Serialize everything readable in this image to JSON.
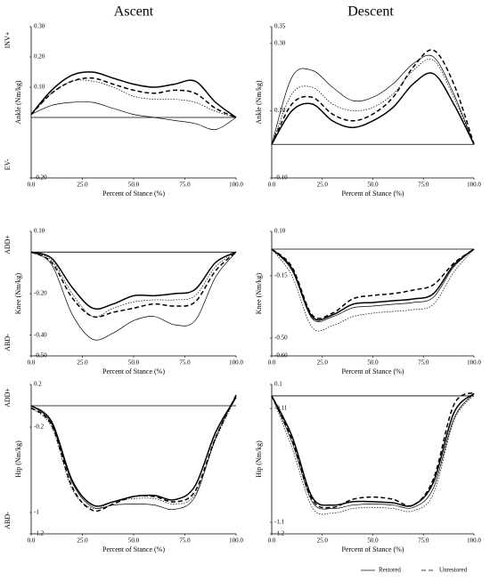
{
  "columns": [
    "Ascent",
    "Descent"
  ],
  "legend": [
    {
      "label": "Restored",
      "line_style": "solid"
    },
    {
      "label": "Unrestored",
      "line_style": "dashed"
    }
  ],
  "chart_data": [
    {
      "type": "line",
      "y_label": "Ankle (Nm/kg)",
      "x_label": "Percent of Stance (%)",
      "side_labels": [
        "INV+",
        "EV-"
      ],
      "x": [
        0,
        10,
        20,
        30,
        40,
        50,
        60,
        70,
        80,
        90,
        100
      ],
      "xlim": [
        0,
        100
      ],
      "xticks": [
        {
          "value": 0,
          "label": "0.0"
        },
        {
          "value": 25,
          "label": "25.0"
        },
        {
          "value": 50,
          "label": "50.0"
        },
        {
          "value": 75,
          "label": "75.0"
        },
        {
          "value": 100,
          "label": "100.0"
        }
      ],
      "ylim": [
        -0.2,
        0.3
      ],
      "yticks": [
        {
          "value": 0.3,
          "label": "0.30"
        },
        {
          "value": 0.2,
          "label": "0.20"
        },
        {
          "value": 0.1,
          "label": "0.10"
        },
        {
          "value": -0.2,
          "label": "-0.20"
        }
      ],
      "hline": 0,
      "series": [
        {
          "color": "#000000",
          "line_style": "solid",
          "weight": "bold",
          "values": [
            0.01,
            0.09,
            0.14,
            0.15,
            0.13,
            0.11,
            0.1,
            0.11,
            0.12,
            0.05,
            0.0
          ]
        },
        {
          "color": "#000000",
          "line_style": "dashed",
          "weight": "bold",
          "values": [
            0.01,
            0.08,
            0.12,
            0.13,
            0.11,
            0.09,
            0.08,
            0.09,
            0.08,
            0.03,
            0.0
          ]
        },
        {
          "color": "#000000",
          "line_style": "dotted",
          "weight": "thin",
          "values": [
            0.01,
            0.08,
            0.12,
            0.12,
            0.1,
            0.07,
            0.06,
            0.06,
            0.05,
            0.02,
            0.0
          ]
        },
        {
          "color": "#000000",
          "line_style": "solid",
          "weight": "thin",
          "values": [
            0.01,
            0.04,
            0.05,
            0.05,
            0.03,
            0.01,
            0.0,
            -0.01,
            -0.02,
            -0.04,
            0.0
          ]
        }
      ]
    },
    {
      "type": "line",
      "y_label": "Ankle (Nm/kg)",
      "x_label": "Percent of Stance (%)",
      "side_labels": [],
      "x": [
        0,
        10,
        20,
        30,
        40,
        50,
        60,
        70,
        80,
        90,
        100
      ],
      "xlim": [
        0,
        100
      ],
      "xticks": [
        {
          "value": 0,
          "label": "0.0"
        },
        {
          "value": 25,
          "label": "25.0"
        },
        {
          "value": 50,
          "label": "50.0"
        },
        {
          "value": 75,
          "label": "75.0"
        },
        {
          "value": 100,
          "label": "100.0"
        }
      ],
      "ylim": [
        -0.1,
        0.35
      ],
      "yticks": [
        {
          "value": 0.35,
          "label": "0.35"
        },
        {
          "value": 0.3,
          "label": "0.30"
        },
        {
          "value": 0.1,
          "label": "0.10"
        },
        {
          "value": -0.1,
          "label": "-0.10"
        }
      ],
      "hline": 0,
      "series": [
        {
          "color": "#000000",
          "line_style": "solid",
          "weight": "thin",
          "values": [
            0,
            0.2,
            0.22,
            0.17,
            0.13,
            0.14,
            0.18,
            0.24,
            0.26,
            0.15,
            0
          ]
        },
        {
          "color": "#000000",
          "line_style": "dotted",
          "weight": "thin",
          "values": [
            0,
            0.15,
            0.17,
            0.12,
            0.1,
            0.11,
            0.15,
            0.22,
            0.25,
            0.14,
            0
          ]
        },
        {
          "color": "#000000",
          "line_style": "dashed",
          "weight": "bold",
          "values": [
            0,
            0.12,
            0.14,
            0.09,
            0.07,
            0.09,
            0.14,
            0.23,
            0.28,
            0.18,
            0
          ]
        },
        {
          "color": "#000000",
          "line_style": "solid",
          "weight": "bold",
          "values": [
            0,
            0.1,
            0.12,
            0.07,
            0.05,
            0.07,
            0.11,
            0.18,
            0.21,
            0.12,
            0
          ]
        }
      ]
    },
    {
      "type": "line",
      "y_label": "Knee (Nm/kg)",
      "x_label": "Percent of Stance (%)",
      "side_labels": [
        "ADD+",
        "ABD-"
      ],
      "x": [
        0,
        10,
        20,
        30,
        40,
        50,
        60,
        70,
        80,
        90,
        100
      ],
      "xlim": [
        0,
        100
      ],
      "xticks": [
        {
          "value": 0,
          "label": "0.0"
        },
        {
          "value": 25,
          "label": "25.0"
        },
        {
          "value": 50,
          "label": "50.0"
        },
        {
          "value": 75,
          "label": "75.0"
        },
        {
          "value": 100,
          "label": "100.0"
        }
      ],
      "ylim": [
        -0.5,
        0.1
      ],
      "yticks": [
        {
          "value": 0.1,
          "label": "0.10"
        },
        {
          "value": -0.2,
          "label": "-0.20"
        },
        {
          "value": -0.4,
          "label": "-0.40"
        },
        {
          "value": -0.5,
          "label": "-0.50"
        }
      ],
      "hline": 0,
      "series": [
        {
          "color": "#000000",
          "line_style": "solid",
          "weight": "bold",
          "values": [
            0,
            -0.03,
            -0.17,
            -0.27,
            -0.25,
            -0.21,
            -0.21,
            -0.2,
            -0.18,
            -0.05,
            0
          ]
        },
        {
          "color": "#000000",
          "line_style": "dotted",
          "weight": "thin",
          "values": [
            0,
            -0.04,
            -0.2,
            -0.31,
            -0.27,
            -0.24,
            -0.23,
            -0.23,
            -0.21,
            -0.07,
            0
          ]
        },
        {
          "color": "#000000",
          "line_style": "dashed",
          "weight": "bold",
          "values": [
            0,
            -0.05,
            -0.22,
            -0.31,
            -0.29,
            -0.27,
            -0.25,
            -0.26,
            -0.24,
            -0.09,
            0
          ]
        },
        {
          "color": "#000000",
          "line_style": "solid",
          "weight": "thin",
          "values": [
            0,
            -0.06,
            -0.3,
            -0.42,
            -0.39,
            -0.33,
            -0.31,
            -0.35,
            -0.33,
            -0.12,
            0
          ]
        }
      ]
    },
    {
      "type": "line",
      "y_label": "Knee (Nm/kg)",
      "x_label": "Percent of Stance (%)",
      "side_labels": [],
      "x": [
        0,
        10,
        20,
        30,
        40,
        50,
        60,
        70,
        80,
        90,
        100
      ],
      "xlim": [
        0,
        100
      ],
      "xticks": [
        {
          "value": 0,
          "label": "0.0"
        },
        {
          "value": 25,
          "label": "25.0"
        },
        {
          "value": 50,
          "label": "50.0"
        },
        {
          "value": 75,
          "label": "75.0"
        },
        {
          "value": 100,
          "label": "100.0"
        }
      ],
      "ylim": [
        -0.6,
        0.1
      ],
      "yticks": [
        {
          "value": 0.1,
          "label": "0.10"
        },
        {
          "value": -0.15,
          "label": "-0.15"
        },
        {
          "value": -0.5,
          "label": "-0.50"
        },
        {
          "value": -0.6,
          "label": "-0.60"
        }
      ],
      "hline": 0,
      "series": [
        {
          "color": "#000000",
          "line_style": "dashed",
          "weight": "bold",
          "values": [
            0,
            -0.1,
            -0.37,
            -0.36,
            -0.28,
            -0.26,
            -0.25,
            -0.23,
            -0.2,
            -0.08,
            0
          ]
        },
        {
          "color": "#000000",
          "line_style": "solid",
          "weight": "bold",
          "values": [
            0,
            -0.11,
            -0.38,
            -0.37,
            -0.31,
            -0.3,
            -0.29,
            -0.28,
            -0.25,
            -0.09,
            0
          ]
        },
        {
          "color": "#000000",
          "line_style": "solid",
          "weight": "thin",
          "values": [
            0,
            -0.12,
            -0.39,
            -0.38,
            -0.33,
            -0.32,
            -0.31,
            -0.3,
            -0.27,
            -0.1,
            0
          ]
        },
        {
          "color": "#000000",
          "line_style": "dotted",
          "weight": "thin",
          "values": [
            0,
            -0.15,
            -0.44,
            -0.43,
            -0.38,
            -0.36,
            -0.35,
            -0.34,
            -0.31,
            -0.13,
            0
          ]
        }
      ]
    },
    {
      "type": "line",
      "y_label": "Hip (Nm/kg)",
      "x_label": "Percent of Stance (%)",
      "side_labels": [
        "ADD+",
        "ABD-"
      ],
      "x": [
        0,
        10,
        20,
        30,
        40,
        50,
        60,
        70,
        80,
        90,
        100
      ],
      "xlim": [
        0,
        100
      ],
      "xticks": [
        {
          "value": 0,
          "label": "0.0"
        },
        {
          "value": 25,
          "label": "25.0"
        },
        {
          "value": 50,
          "label": "50.0"
        },
        {
          "value": 75,
          "label": "75.0"
        },
        {
          "value": 100,
          "label": "100.0"
        }
      ],
      "ylim": [
        -1.2,
        0.2
      ],
      "yticks": [
        0.2,
        -0.2,
        -1.0,
        -1.2
      ],
      "hline": 0,
      "series": [
        {
          "color": "#000000",
          "line_style": "solid",
          "weight": "bold",
          "values": [
            0,
            -0.15,
            -0.7,
            -0.93,
            -0.9,
            -0.85,
            -0.84,
            -0.88,
            -0.75,
            -0.25,
            0.08
          ]
        },
        {
          "color": "#000000",
          "line_style": "dashed",
          "weight": "bold",
          "values": [
            -0.02,
            -0.18,
            -0.76,
            -0.98,
            -0.92,
            -0.85,
            -0.85,
            -0.9,
            -0.8,
            -0.3,
            0.1
          ]
        },
        {
          "color": "#000000",
          "line_style": "dotted",
          "weight": "thin",
          "values": [
            -0.02,
            -0.2,
            -0.78,
            -0.96,
            -0.9,
            -0.87,
            -0.87,
            -0.92,
            -0.83,
            -0.32,
            0.08
          ]
        },
        {
          "color": "#000000",
          "line_style": "solid",
          "weight": "thin",
          "values": [
            0,
            -0.17,
            -0.72,
            -0.95,
            -0.93,
            -0.92,
            -0.93,
            -0.97,
            -0.85,
            -0.3,
            0.1
          ]
        }
      ]
    },
    {
      "type": "line",
      "y_label": "Hip (Nm/kg)",
      "x_label": "Percent of Stance (%)",
      "side_labels": [],
      "x": [
        0,
        10,
        20,
        30,
        40,
        50,
        60,
        70,
        80,
        90,
        100
      ],
      "xlim": [
        0,
        100
      ],
      "xticks": [
        {
          "value": 0,
          "label": "0.0"
        },
        {
          "value": 25,
          "label": "25.0"
        },
        {
          "value": 50,
          "label": "50.0"
        },
        {
          "value": 75,
          "label": "75.0"
        },
        {
          "value": 100,
          "label": "100.0"
        }
      ],
      "ylim": [
        -1.2,
        0.1
      ],
      "yticks": [
        0.1,
        -0.11,
        -1.1,
        -1.2
      ],
      "hline": 0,
      "series": [
        {
          "color": "#000000",
          "line_style": "solid",
          "weight": "bold",
          "values": [
            0,
            -0.35,
            -0.88,
            -0.95,
            -0.92,
            -0.92,
            -0.93,
            -0.95,
            -0.75,
            -0.15,
            0.02
          ]
        },
        {
          "color": "#000000",
          "line_style": "dashed",
          "weight": "bold",
          "values": [
            0,
            -0.38,
            -0.9,
            -0.97,
            -0.9,
            -0.88,
            -0.9,
            -0.95,
            -0.72,
            -0.08,
            0.03
          ]
        },
        {
          "color": "#000000",
          "line_style": "solid",
          "weight": "thin",
          "values": [
            0,
            -0.4,
            -0.92,
            -0.98,
            -0.95,
            -0.94,
            -0.95,
            -0.97,
            -0.8,
            -0.2,
            0.02
          ]
        },
        {
          "color": "#000000",
          "line_style": "dotted",
          "weight": "thin",
          "values": [
            0,
            -0.45,
            -0.97,
            -1.02,
            -0.98,
            -0.97,
            -0.98,
            -1.0,
            -0.85,
            -0.22,
            0.01
          ]
        }
      ]
    }
  ]
}
